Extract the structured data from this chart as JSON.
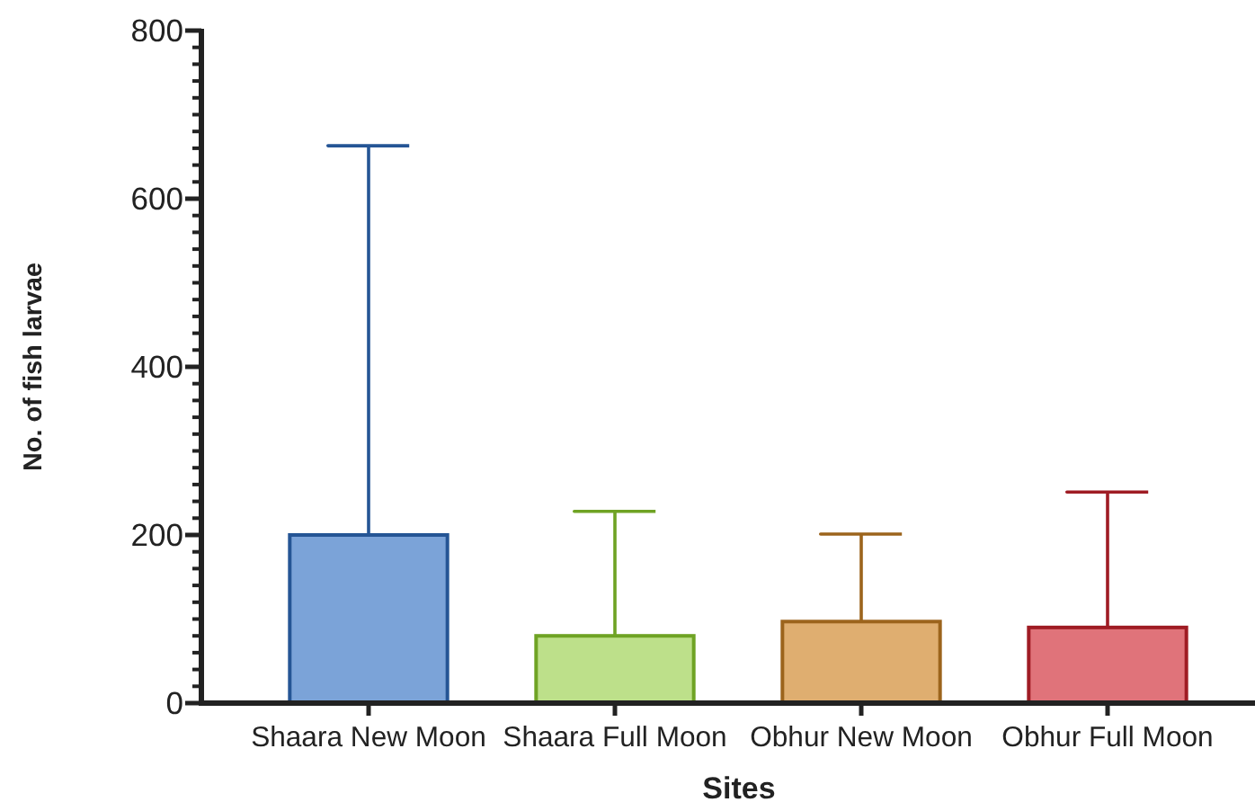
{
  "chart_data": {
    "type": "bar",
    "xlabel": "Sites",
    "ylabel": "No. of fish larvae",
    "categories": [
      "Shaara New Moon",
      "Shaara Full Moon",
      "Obhur New Moon",
      "Obhur Full Moon"
    ],
    "values": [
      200,
      80,
      97,
      90
    ],
    "errors": [
      [
        200,
        663
      ],
      [
        80,
        228
      ],
      [
        97,
        201
      ],
      [
        90,
        251
      ]
    ],
    "colors": [
      "#7ba3d8",
      "#bde08a",
      "#dfae70",
      "#e0737a"
    ],
    "ylim": [
      0,
      800
    ],
    "yticks": [
      0,
      {
        "value": 20,
        "label": null
      },
      {
        "value": 40,
        "label": null
      },
      {
        "value": 60,
        "label": null
      },
      {
        "value": 80,
        "label": null
      },
      {
        "value": 100,
        "label": null
      },
      {
        "value": 120,
        "label": null
      },
      {
        "value": 140,
        "label": null
      },
      {
        "value": 160,
        "label": null
      },
      {
        "value": 180,
        "label": null
      },
      200,
      {
        "value": 220,
        "label": null
      },
      {
        "value": 240,
        "label": null
      },
      {
        "value": 260,
        "label": null
      },
      {
        "value": 280,
        "label": null
      },
      {
        "value": 300,
        "label": null
      },
      {
        "value": 320,
        "label": null
      },
      {
        "value": 340,
        "label": null
      },
      {
        "value": 360,
        "label": null
      },
      {
        "value": 380,
        "label": null
      },
      400,
      {
        "value": 420,
        "label": null
      },
      {
        "value": 440,
        "label": null
      },
      {
        "value": 460,
        "label": null
      },
      {
        "value": 480,
        "label": null
      },
      {
        "value": 500,
        "label": null
      },
      {
        "value": 520,
        "label": null
      },
      {
        "value": 540,
        "label": null
      },
      {
        "value": 560,
        "label": null
      },
      {
        "value": 580,
        "label": null
      },
      600,
      {
        "value": 620,
        "label": null
      },
      {
        "value": 640,
        "label": null
      },
      {
        "value": 660,
        "label": null
      },
      {
        "value": 680,
        "label": null
      },
      {
        "value": 700,
        "label": null
      },
      {
        "value": 720,
        "label": null
      },
      {
        "value": 740,
        "label": null
      },
      {
        "value": 760,
        "label": null
      },
      {
        "value": 780,
        "label": null
      },
      800
    ]
  }
}
